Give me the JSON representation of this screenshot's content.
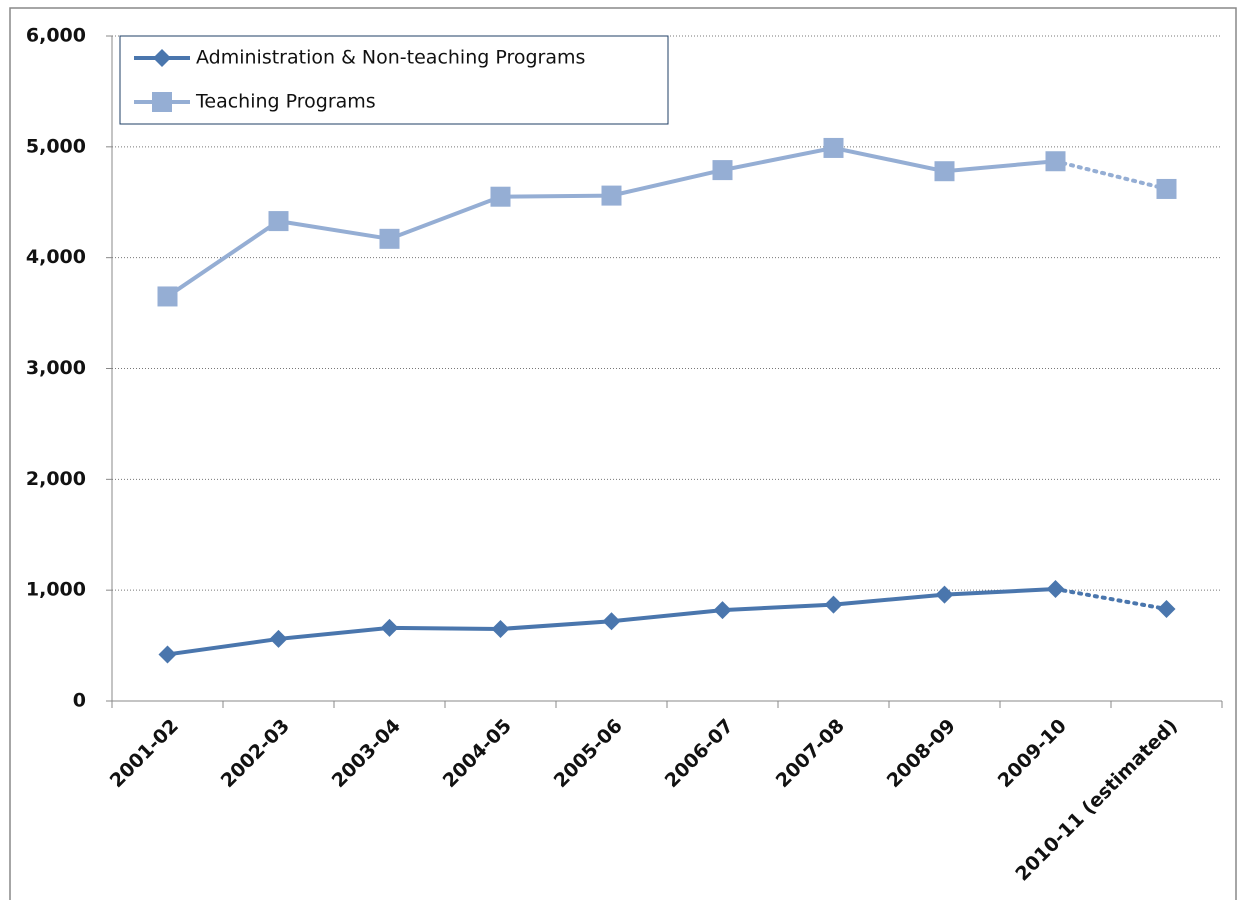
{
  "chart_data": {
    "type": "line",
    "categories": [
      "2001-02",
      "2002-03",
      "2003-04",
      "2004-05",
      "2005-06",
      "2006-07",
      "2007-08",
      "2008-09",
      "2009-10",
      "2010-11 (estimated)"
    ],
    "series": [
      {
        "name": "Administration & Non-teaching Programs",
        "color": "#4a76ad",
        "marker": "diamond",
        "values": [
          420,
          560,
          660,
          650,
          720,
          820,
          870,
          960,
          1010,
          830
        ]
      },
      {
        "name": "Teaching Programs",
        "color": "#95aed4",
        "marker": "square",
        "values": [
          3650,
          4330,
          4170,
          4550,
          4560,
          4790,
          4990,
          4780,
          4870,
          4620
        ]
      }
    ],
    "ylim": [
      0,
      6000
    ],
    "yticks": [
      0,
      {
        "value": 1000,
        "label": "1,000"
      },
      {
        "value": 2000,
        "label": "2,000"
      },
      {
        "value": 3000,
        "label": "3,000"
      },
      {
        "value": 4000,
        "label": "4,000"
      },
      {
        "value": 5000,
        "label": "5,000"
      },
      {
        "value": 6000,
        "label": "6,000"
      }
    ],
    "grid": true,
    "legend": "top-left"
  }
}
